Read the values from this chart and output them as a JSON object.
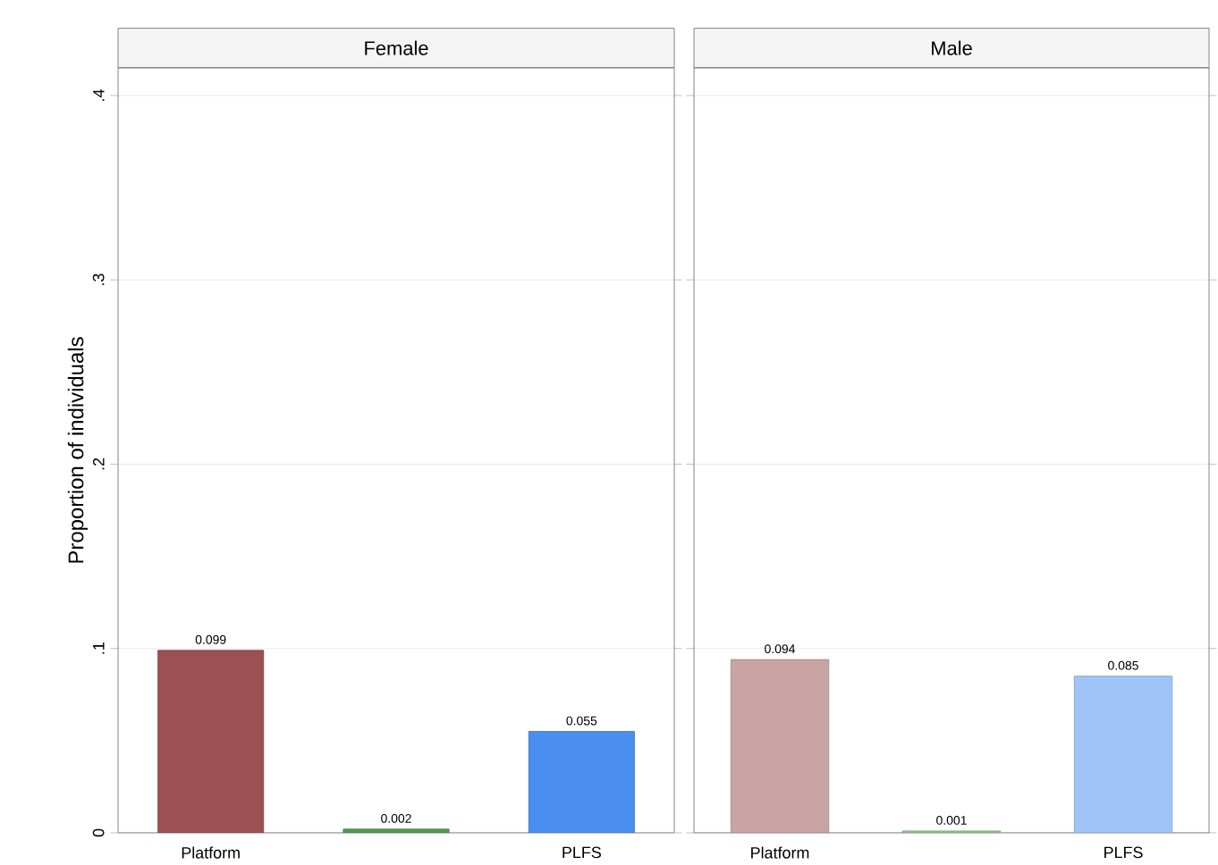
{
  "chart_data": [
    {
      "type": "bar",
      "title": "Female",
      "ylabel": "Proportion of individuals",
      "categories": [
        "Platform",
        null,
        "PLFS"
      ],
      "values": [
        0.099,
        0.002,
        0.055
      ],
      "colors": [
        "#9b5151",
        "#4f9b4f",
        "#4a8ef0"
      ],
      "data_labels": true,
      "grid": "y",
      "ylim": [
        0,
        0.415
      ],
      "yticks": [
        0,
        {
          "value": 0.1,
          "label": ".1"
        },
        {
          "value": 0.2,
          "label": ".2"
        },
        {
          "value": 0.3,
          "label": ".3"
        },
        {
          "value": 0.4,
          "label": ".4"
        }
      ]
    },
    {
      "type": "bar",
      "title": "Male",
      "categories": [
        "Platform",
        null,
        "PLFS"
      ],
      "values": [
        0.094,
        0.001,
        0.085
      ],
      "colors": [
        "#c8a4a4",
        "#8fca8f",
        "#9fc4f5"
      ],
      "data_labels": true,
      "grid": "y",
      "tick_labels": "x",
      "ylim": [
        0,
        0.415
      ],
      "yticks": [
        {
          "value": 0,
          "label": null
        },
        {
          "value": 0.1,
          "label": null
        },
        {
          "value": 0.2,
          "label": null
        },
        {
          "value": 0.3,
          "label": null
        },
        {
          "value": 0.4,
          "label": null
        }
      ]
    }
  ]
}
